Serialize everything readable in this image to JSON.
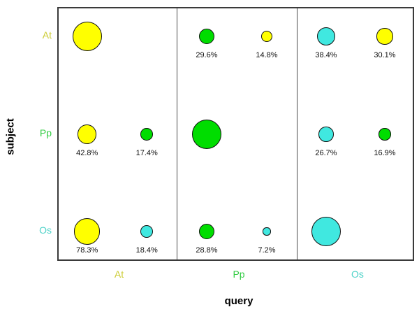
{
  "chart_data": {
    "type": "bubble-matrix",
    "title": "",
    "xlabel": "query",
    "ylabel": "subject",
    "x_categories": [
      "At",
      "Pp",
      "Os"
    ],
    "y_categories": [
      "At",
      "Pp",
      "Os"
    ],
    "fill_colors": {
      "At": "#ffff00",
      "Pp": "#00dd00",
      "Os": "#40e8e0"
    },
    "tick_colors": {
      "At": "#cccc33",
      "Pp": "#33cc44",
      "Os": "#4dd2c8"
    },
    "value_unit": "%",
    "bubbles": [
      {
        "query": "At",
        "subject": "At",
        "slot": 0,
        "value": 100,
        "color_of": "At",
        "label": ""
      },
      {
        "query": "At",
        "subject": "Pp",
        "slot": 0,
        "value": 42.8,
        "color_of": "At",
        "label": "42.8%"
      },
      {
        "query": "At",
        "subject": "Pp",
        "slot": 1,
        "value": 17.4,
        "color_of": "Pp",
        "label": "17.4%"
      },
      {
        "query": "At",
        "subject": "Os",
        "slot": 0,
        "value": 78.3,
        "color_of": "At",
        "label": "78.3%"
      },
      {
        "query": "At",
        "subject": "Os",
        "slot": 1,
        "value": 18.4,
        "color_of": "Os",
        "label": "18.4%"
      },
      {
        "query": "Pp",
        "subject": "At",
        "slot": 0,
        "value": 29.6,
        "color_of": "Pp",
        "label": "29.6%"
      },
      {
        "query": "Pp",
        "subject": "At",
        "slot": 1,
        "value": 14.8,
        "color_of": "At",
        "label": "14.8%"
      },
      {
        "query": "Pp",
        "subject": "Pp",
        "slot": 0,
        "value": 100,
        "color_of": "Pp",
        "label": ""
      },
      {
        "query": "Pp",
        "subject": "Os",
        "slot": 0,
        "value": 28.8,
        "color_of": "Pp",
        "label": "28.8%"
      },
      {
        "query": "Pp",
        "subject": "Os",
        "slot": 1,
        "value": 7.2,
        "color_of": "Os",
        "label": "7.2%"
      },
      {
        "query": "Os",
        "subject": "At",
        "slot": 0,
        "value": 38.4,
        "color_of": "Os",
        "label": "38.4%"
      },
      {
        "query": "Os",
        "subject": "At",
        "slot": 1,
        "value": 30.1,
        "color_of": "At",
        "label": "30.1%"
      },
      {
        "query": "Os",
        "subject": "Pp",
        "slot": 0,
        "value": 26.7,
        "color_of": "Os",
        "label": "26.7%"
      },
      {
        "query": "Os",
        "subject": "Pp",
        "slot": 1,
        "value": 16.9,
        "color_of": "Pp",
        "label": "16.9%"
      },
      {
        "query": "Os",
        "subject": "Os",
        "slot": 0,
        "value": 100,
        "color_of": "Os",
        "label": ""
      }
    ]
  }
}
